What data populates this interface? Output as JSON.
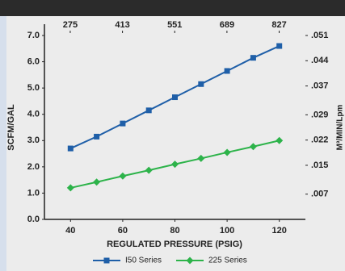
{
  "chart_data": {
    "type": "line",
    "x_label": "REGULATED PRESSURE (PSIG)",
    "y_label": "SCFM/GAL",
    "y2_label": "M³/MIN/Lpm",
    "x": [
      40,
      50,
      60,
      70,
      80,
      90,
      100,
      110,
      120
    ],
    "xlim": [
      30,
      130
    ],
    "xticks": [
      40,
      60,
      80,
      100,
      120
    ],
    "x2lim": [
      206.8,
      896.3
    ],
    "x2ticks": [
      275,
      413,
      551,
      689,
      827
    ],
    "ylim": [
      0,
      7
    ],
    "yticks": [
      {
        "value": 0,
        "label": "0.0"
      },
      {
        "value": 1,
        "label": "1.0"
      },
      {
        "value": 2,
        "label": "2.0"
      },
      {
        "value": 3,
        "label": "3.0"
      },
      {
        "value": 4,
        "label": "4.0"
      },
      {
        "value": 5,
        "label": "5.0"
      },
      {
        "value": 6,
        "label": "6.0"
      },
      {
        "value": 7,
        "label": "7.0"
      }
    ],
    "y2lim": [
      0,
      0.051
    ],
    "y2ticks": [
      {
        "value": 0.007,
        "label": ".007"
      },
      {
        "value": 0.015,
        "label": ".015"
      },
      {
        "value": 0.022,
        "label": ".022"
      },
      {
        "value": 0.029,
        "label": ".029"
      },
      {
        "value": 0.037,
        "label": ".037"
      },
      {
        "value": 0.044,
        "label": ".044"
      },
      {
        "value": 0.051,
        "label": ".051"
      }
    ],
    "legend": "bottom",
    "series": [
      {
        "name": "I50 Series",
        "color": "#1f5fa8",
        "marker": "square",
        "values": [
          2.7,
          3.15,
          3.65,
          4.15,
          4.65,
          5.15,
          5.65,
          6.15,
          6.6
        ]
      },
      {
        "name": "225 Series",
        "color": "#2db34a",
        "marker": "diamond",
        "values": [
          1.2,
          1.42,
          1.65,
          1.87,
          2.1,
          2.32,
          2.55,
          2.77,
          3.0
        ]
      }
    ]
  }
}
